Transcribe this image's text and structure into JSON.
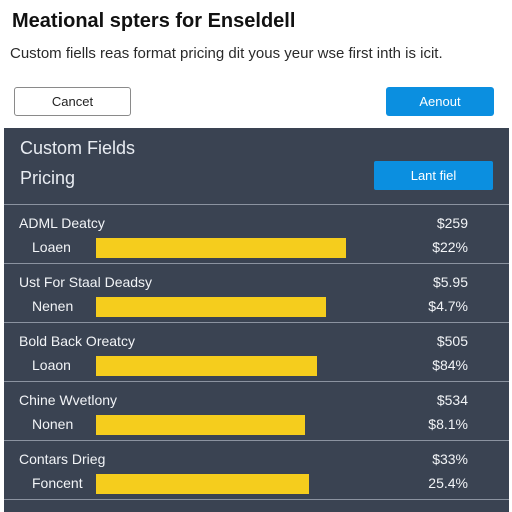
{
  "header": {
    "title": "Meational spters for Enseldell",
    "subtitle": "Custom fiells reas format pricing dit yous yeur wse first inth is icit."
  },
  "actions": {
    "cancel_label": "Cancet",
    "primary_label": "Aenout",
    "primary_color": "#0b8fe0"
  },
  "panel": {
    "title": "Custom Fields",
    "subtitle": "Pricing",
    "add_label": "Lant fiel",
    "add_color": "#0b8fe0",
    "background": "#3a4352",
    "bar_color": "#f5cd1d"
  },
  "rows": [
    {
      "title": "ADML Deatcy",
      "sub": "Loaen",
      "value": "$259",
      "pct": "$22%",
      "fill": 0.61
    },
    {
      "title": "Ust For Staal Deadsy",
      "sub": "Nenen",
      "value": "$5.95",
      "pct": "$4.7%",
      "fill": 0.56
    },
    {
      "title": "Bold Back Oreatcy",
      "sub": "Loaon",
      "value": "$505",
      "pct": "$84%",
      "fill": 0.54
    },
    {
      "title": "Chine Wvetlony",
      "sub": "Nonen",
      "value": "$534",
      "pct": "$8.1%",
      "fill": 0.51
    },
    {
      "title": "Contars Drieg",
      "sub": "Foncent",
      "value": "$33%",
      "pct": "25.4%",
      "fill": 0.52
    }
  ]
}
